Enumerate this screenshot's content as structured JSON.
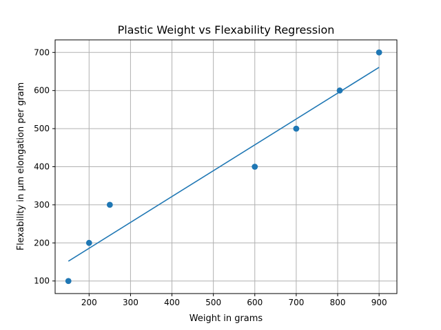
{
  "chart_data": {
    "type": "scatter",
    "title": "Plastic Weight vs Flexability Regression",
    "xlabel": "Weight in grams",
    "ylabel": "Flexability in μm elongation per gram",
    "xlim": [
      118,
      943
    ],
    "ylim": [
      67,
      733
    ],
    "x_ticks": [
      200,
      300,
      400,
      500,
      600,
      700,
      800,
      900
    ],
    "y_ticks": [
      100,
      200,
      300,
      400,
      500,
      600,
      700
    ],
    "grid": true,
    "colors": {
      "points": "#1f77b4",
      "line": "#1f77b4",
      "grid": "#b0b0b0"
    },
    "series": [
      {
        "type": "scatter",
        "x": [
          150,
          200,
          250,
          600,
          700,
          805,
          900
        ],
        "y": [
          100,
          200,
          300,
          400,
          500,
          600,
          700
        ]
      },
      {
        "type": "line",
        "x": [
          150,
          900
        ],
        "y": [
          152,
          661
        ]
      }
    ]
  }
}
